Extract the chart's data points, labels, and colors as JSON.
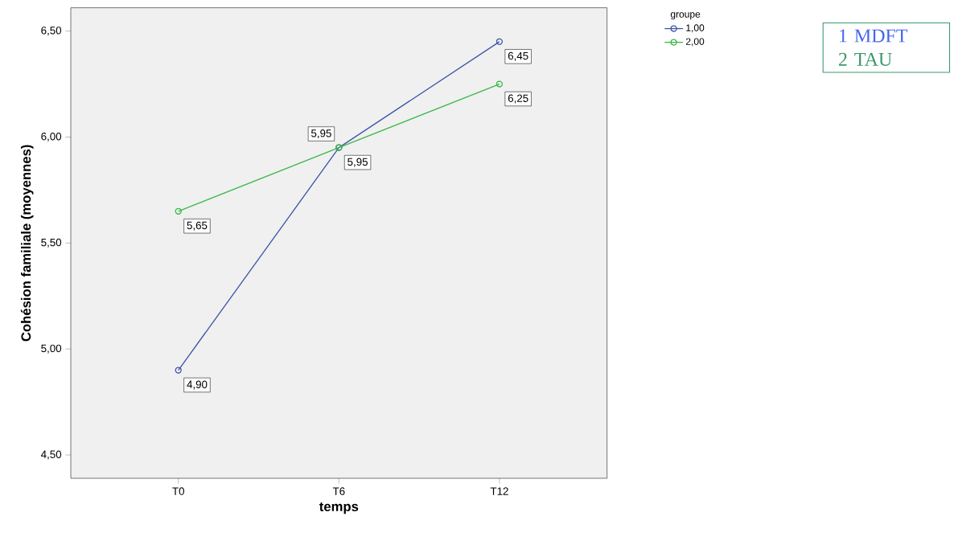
{
  "chart_data": {
    "type": "line",
    "xlabel": "temps",
    "ylabel": "Cohésion familiale (moyennes)",
    "legend_title": "groupe",
    "categories": [
      "T0",
      "T6",
      "T12"
    ],
    "series": [
      {
        "name": "1,00",
        "color": "#3e56a8",
        "values": [
          4.9,
          5.95,
          6.45
        ],
        "value_labels": [
          "4,90",
          "5,95",
          "6,45"
        ]
      },
      {
        "name": "2,00",
        "color": "#3cb84a",
        "values": [
          5.65,
          5.95,
          6.25
        ],
        "value_labels": [
          "5,65",
          "5,95",
          "6,25"
        ]
      }
    ],
    "ylim": [
      4.39,
      6.61
    ],
    "yticks": [
      {
        "value": 4.5,
        "label": "4,50"
      },
      {
        "value": 5.0,
        "label": "5,00"
      },
      {
        "value": 5.5,
        "label": "5,50"
      },
      {
        "value": 6.0,
        "label": "6,00"
      },
      {
        "value": 6.5,
        "label": "6,50"
      }
    ],
    "annotations": [
      "1 MDFT",
      "2 TAU"
    ],
    "marker": "circle",
    "line_style": "solid",
    "grid": false,
    "legend": "top right"
  }
}
